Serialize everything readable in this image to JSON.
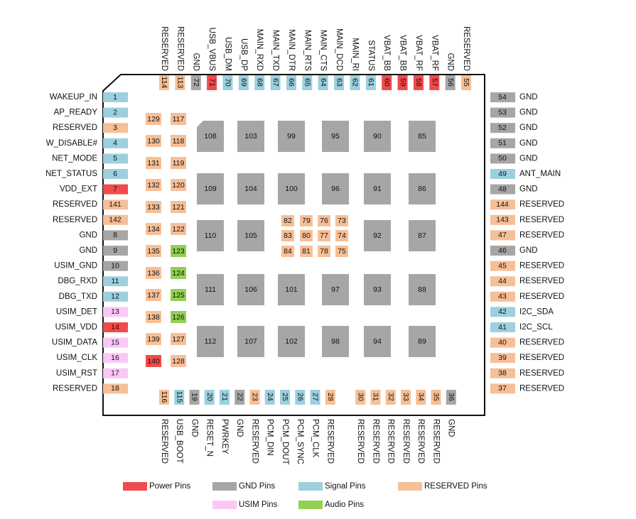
{
  "left_pins": [
    {
      "num": "1",
      "label": "WAKEUP_IN",
      "color": "#9cd0de"
    },
    {
      "num": "2",
      "label": "AP_READY",
      "color": "#9cd0de"
    },
    {
      "num": "3",
      "label": "RESERVED",
      "color": "#f7bf96"
    },
    {
      "num": "4",
      "label": "W_DISABLE#",
      "color": "#9cd0de"
    },
    {
      "num": "5",
      "label": "NET_MODE",
      "color": "#9cd0de"
    },
    {
      "num": "6",
      "label": "NET_STATUS",
      "color": "#9cd0de"
    },
    {
      "num": "7",
      "label": "VDD_EXT",
      "color": "#f24a4a"
    },
    {
      "num": "141",
      "label": "RESERVED",
      "color": "#f7bf96"
    },
    {
      "num": "142",
      "label": "RESERVED",
      "color": "#f7bf96"
    },
    {
      "num": "8",
      "label": "GND",
      "color": "#a6a6a6"
    },
    {
      "num": "9",
      "label": "GND",
      "color": "#a6a6a6"
    },
    {
      "num": "10",
      "label": "USIM_GND",
      "color": "#a6a6a6"
    },
    {
      "num": "11",
      "label": "DBG_RXD",
      "color": "#9cd0de"
    },
    {
      "num": "12",
      "label": "DBG_TXD",
      "color": "#9cd0de"
    },
    {
      "num": "13",
      "label": "USIM_DET",
      "color": "#fbc8f6"
    },
    {
      "num": "14",
      "label": "USIM_VDD",
      "color": "#f24a4a"
    },
    {
      "num": "15",
      "label": "USIM_DATA",
      "color": "#fbc8f6"
    },
    {
      "num": "16",
      "label": "USIM_CLK",
      "color": "#fbc8f6"
    },
    {
      "num": "17",
      "label": "USIM_RST",
      "color": "#fbc8f6"
    },
    {
      "num": "18",
      "label": "RESERVED",
      "color": "#f7bf96"
    }
  ],
  "right_pins": [
    {
      "num": "54",
      "label": "GND",
      "color": "#a6a6a6"
    },
    {
      "num": "53",
      "label": "GND",
      "color": "#a6a6a6"
    },
    {
      "num": "52",
      "label": "GND",
      "color": "#a6a6a6"
    },
    {
      "num": "51",
      "label": "GND",
      "color": "#a6a6a6"
    },
    {
      "num": "50",
      "label": "GND",
      "color": "#a6a6a6"
    },
    {
      "num": "49",
      "label": "ANT_MAIN",
      "color": "#9cd0de"
    },
    {
      "num": "48",
      "label": "GND",
      "color": "#a6a6a6"
    },
    {
      "num": "144",
      "label": "RESERVED",
      "color": "#f7bf96"
    },
    {
      "num": "143",
      "label": "RESERVED",
      "color": "#f7bf96"
    },
    {
      "num": "47",
      "label": "RESERVED",
      "color": "#f7bf96"
    },
    {
      "num": "46",
      "label": "GND",
      "color": "#a6a6a6"
    },
    {
      "num": "45",
      "label": "RESERVED",
      "color": "#f7bf96"
    },
    {
      "num": "44",
      "label": "RESERVED",
      "color": "#f7bf96"
    },
    {
      "num": "43",
      "label": "RESERVED",
      "color": "#f7bf96"
    },
    {
      "num": "42",
      "label": "I2C_SDA",
      "color": "#9cd0de"
    },
    {
      "num": "41",
      "label": "I2C_SCL",
      "color": "#9cd0de"
    },
    {
      "num": "40",
      "label": "RESERVED",
      "color": "#f7bf96"
    },
    {
      "num": "39",
      "label": "RESERVED",
      "color": "#f7bf96"
    },
    {
      "num": "38",
      "label": "RESERVED",
      "color": "#f7bf96"
    },
    {
      "num": "37",
      "label": "RESERVED",
      "color": "#f7bf96"
    }
  ],
  "top_pins": [
    {
      "num": "114",
      "label": "RESERVED",
      "color": "#f7bf96"
    },
    {
      "num": "113",
      "label": "RESERVED",
      "color": "#f7bf96"
    },
    {
      "num": "72",
      "label": "GND",
      "color": "#a6a6a6"
    },
    {
      "num": "71",
      "label": "USB_VBUS",
      "color": "#f24a4a"
    },
    {
      "num": "70",
      "label": "USB_DM",
      "color": "#9cd0de"
    },
    {
      "num": "69",
      "label": "USB_DP",
      "color": "#9cd0de"
    },
    {
      "num": "68",
      "label": "MAIN_RXD",
      "color": "#9cd0de"
    },
    {
      "num": "67",
      "label": "MAIN_TXD",
      "color": "#9cd0de"
    },
    {
      "num": "66",
      "label": "MAIN_DTR",
      "color": "#9cd0de"
    },
    {
      "num": "65",
      "label": "MAIN_RTS",
      "color": "#9cd0de"
    },
    {
      "num": "64",
      "label": "MAIN_CTS",
      "color": "#9cd0de"
    },
    {
      "num": "63",
      "label": "MAIN_DCD",
      "color": "#9cd0de"
    },
    {
      "num": "62",
      "label": "MAIN_RI",
      "color": "#9cd0de"
    },
    {
      "num": "61",
      "label": "STATUS",
      "color": "#9cd0de"
    },
    {
      "num": "60",
      "label": "VBAT_BB",
      "color": "#f24a4a"
    },
    {
      "num": "59",
      "label": "VBAT_BB",
      "color": "#f24a4a"
    },
    {
      "num": "58",
      "label": "VBAT_RF",
      "color": "#f24a4a"
    },
    {
      "num": "57",
      "label": "VBAT_RF",
      "color": "#f24a4a"
    },
    {
      "num": "56",
      "label": "GND",
      "color": "#a6a6a6"
    },
    {
      "num": "55",
      "label": "RESERVED",
      "color": "#f7bf96"
    }
  ],
  "bottom_pins": [
    {
      "num": "116",
      "label": "RESERVED",
      "color": "#f7bf96"
    },
    {
      "num": "115",
      "label": "USB_BOOT",
      "color": "#9cd0de"
    },
    {
      "num": "19",
      "label": "GND",
      "color": "#a6a6a6"
    },
    {
      "num": "20",
      "label": "RESET_N",
      "color": "#9cd0de"
    },
    {
      "num": "21",
      "label": "PWRKEY",
      "color": "#9cd0de"
    },
    {
      "num": "22",
      "label": "GND",
      "color": "#a6a6a6"
    },
    {
      "num": "23",
      "label": "RESERVED",
      "color": "#f7bf96"
    },
    {
      "num": "24",
      "label": "PCM_DIN",
      "color": "#9cd0de"
    },
    {
      "num": "25",
      "label": "PCM_DOUT",
      "color": "#9cd0de"
    },
    {
      "num": "26",
      "label": "PCM_SYNC",
      "color": "#9cd0de"
    },
    {
      "num": "27",
      "label": "PCM_CLK",
      "color": "#9cd0de"
    },
    {
      "num": "28",
      "label": "RESERVED",
      "color": "#f7bf96"
    },
    {
      "num": "30",
      "label": "RESERVED",
      "color": "#f7bf96"
    },
    {
      "num": "31",
      "label": "RESERVED",
      "color": "#f7bf96"
    },
    {
      "num": "32",
      "label": "RESERVED",
      "color": "#f7bf96"
    },
    {
      "num": "33",
      "label": "RESERVED",
      "color": "#f7bf96"
    },
    {
      "num": "34",
      "label": "RESERVED",
      "color": "#f7bf96"
    },
    {
      "num": "35",
      "label": "RESERVED",
      "color": "#f7bf96"
    },
    {
      "num": "36",
      "label": "GND",
      "color": "#a6a6a6"
    }
  ],
  "inner_left": [
    {
      "num": "129",
      "color": "#f7bf96"
    },
    {
      "num": "130",
      "color": "#f7bf96"
    },
    {
      "num": "131",
      "color": "#f7bf96"
    },
    {
      "num": "132",
      "color": "#f7bf96"
    },
    {
      "num": "133",
      "color": "#f7bf96"
    },
    {
      "num": "134",
      "color": "#f7bf96"
    },
    {
      "num": "135",
      "color": "#f7bf96"
    },
    {
      "num": "136",
      "color": "#f7bf96"
    },
    {
      "num": "137",
      "color": "#f7bf96"
    },
    {
      "num": "138",
      "color": "#f7bf96"
    },
    {
      "num": "139",
      "color": "#f7bf96"
    },
    {
      "num": "140",
      "color": "#f24a4a"
    }
  ],
  "inner_right": [
    {
      "num": "117",
      "color": "#f7bf96"
    },
    {
      "num": "118",
      "color": "#f7bf96"
    },
    {
      "num": "119",
      "color": "#f7bf96"
    },
    {
      "num": "120",
      "color": "#f7bf96"
    },
    {
      "num": "121",
      "color": "#f7bf96"
    },
    {
      "num": "122",
      "color": "#f7bf96"
    },
    {
      "num": "123",
      "color": "#92d050"
    },
    {
      "num": "124",
      "color": "#92d050"
    },
    {
      "num": "125",
      "color": "#92d050"
    },
    {
      "num": "126",
      "color": "#92d050"
    },
    {
      "num": "127",
      "color": "#f7bf96"
    },
    {
      "num": "128",
      "color": "#f7bf96"
    }
  ],
  "pad_color": "#a6a6a6",
  "center_grid": [
    [
      "108",
      "103",
      "99",
      "95",
      "90",
      "85"
    ],
    [
      "109",
      "104",
      "100",
      "96",
      "91",
      "86"
    ],
    [
      "110",
      "105",
      null,
      null,
      "92",
      "87"
    ],
    [
      "111",
      "106",
      "101",
      "97",
      "93",
      "88"
    ],
    [
      "112",
      "107",
      "102",
      "98",
      "94",
      "89"
    ]
  ],
  "small_pad_color": "#f7bf96",
  "small_grid": [
    [
      "82",
      "79",
      "76",
      "73"
    ],
    [
      "83",
      "80",
      "77",
      "74"
    ],
    [
      "84",
      "81",
      "78",
      "75"
    ]
  ],
  "legend": [
    {
      "label": "Power Pins",
      "color": "#f24a4a"
    },
    {
      "label": "GND Pins",
      "color": "#a6a6a6"
    },
    {
      "label": "Signal Pins",
      "color": "#9cd0de"
    },
    {
      "label": "RESERVED Pins",
      "color": "#f7bf96"
    },
    {
      "label": "USIM Pins",
      "color": "#fbc8f6"
    },
    {
      "label": "Audio Pins",
      "color": "#92d050"
    }
  ]
}
